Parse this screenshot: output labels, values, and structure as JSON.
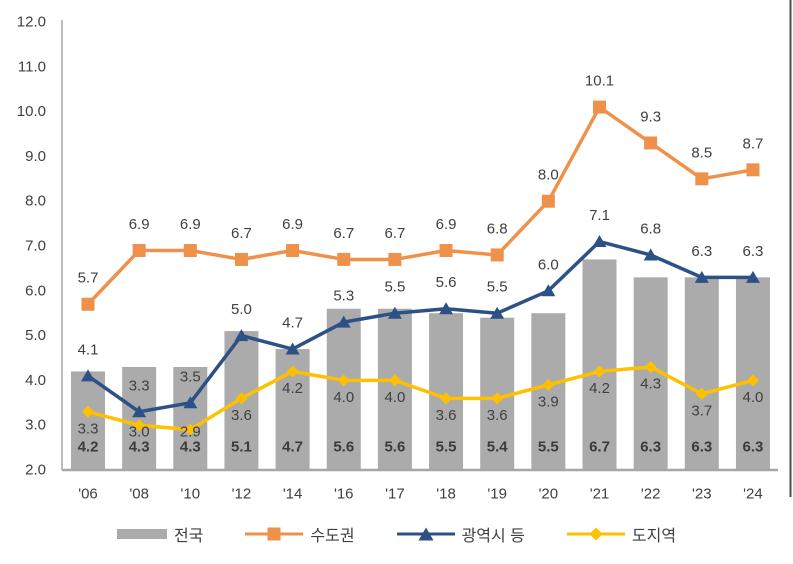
{
  "chart_data": {
    "type": "combo-bar-line",
    "title": "",
    "categories": [
      "'06",
      "'08",
      "'10",
      "'12",
      "'14",
      "'16",
      "'17",
      "'18",
      "'19",
      "'20",
      "'21",
      "'22",
      "'23",
      "'24"
    ],
    "series": [
      {
        "name": "전국",
        "chart": "bar",
        "color": "#ABABAB",
        "marker": "none",
        "label_position": "inside-base",
        "values": [
          4.2,
          4.3,
          4.3,
          5.1,
          4.7,
          5.6,
          5.6,
          5.5,
          5.4,
          5.5,
          6.7,
          6.3,
          6.3,
          6.3
        ]
      },
      {
        "name": "수도권",
        "chart": "line",
        "color": "#F0914B",
        "marker": "square",
        "label_position": "above",
        "values": [
          5.7,
          6.9,
          6.9,
          6.7,
          6.9,
          6.7,
          6.7,
          6.9,
          6.8,
          8.0,
          10.1,
          9.3,
          8.5,
          8.7
        ]
      },
      {
        "name": "광역시 등",
        "chart": "line",
        "color": "#2D5186",
        "marker": "triangle",
        "label_position": "above",
        "values": [
          4.1,
          3.3,
          3.5,
          5.0,
          4.7,
          5.3,
          5.5,
          5.6,
          5.5,
          6.0,
          7.1,
          6.8,
          6.3,
          6.3
        ]
      },
      {
        "name": "도지역",
        "chart": "line",
        "color": "#FFC000",
        "marker": "diamond",
        "label_position": "below",
        "values": [
          3.3,
          3.0,
          2.9,
          3.6,
          4.2,
          4.0,
          4.0,
          3.6,
          3.6,
          3.9,
          4.2,
          4.3,
          3.7,
          4.0
        ]
      }
    ],
    "ylim": [
      2.0,
      12.0
    ],
    "ytick_step": 1.0,
    "ytick_decimals": 1,
    "grid": false,
    "legend_position": "bottom",
    "text_color": "#404040",
    "axis_color": "#A6A6A6",
    "edge_line_color": "#4D4D4D"
  }
}
